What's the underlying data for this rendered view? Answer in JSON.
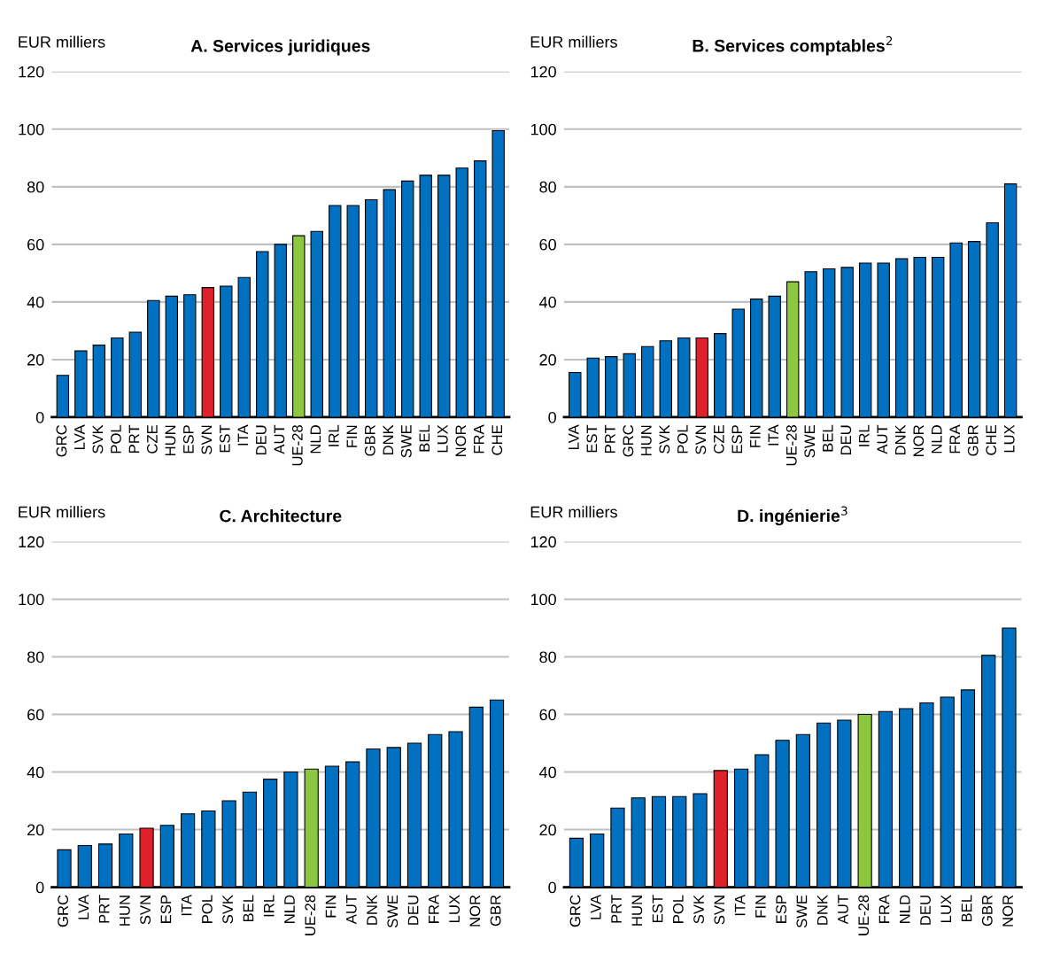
{
  "chart_data": [
    {
      "type": "bar",
      "title": "A. Services juridiques",
      "ylabel": "EUR milliers",
      "categories": [
        "GRC",
        "LVA",
        "SVK",
        "POL",
        "PRT",
        "CZE",
        "HUN",
        "ESP",
        "SVN",
        "EST",
        "ITA",
        "DEU",
        "AUT",
        "UE-28",
        "NLD",
        "IRL",
        "FIN",
        "GBR",
        "DNK",
        "SWE",
        "BEL",
        "LUX",
        "NOR",
        "FRA",
        "CHE"
      ],
      "values": [
        14.5,
        23,
        25,
        27.5,
        29.5,
        40.5,
        42,
        42.5,
        45,
        45.5,
        48.5,
        57.5,
        60,
        63,
        64.5,
        73.5,
        73.5,
        75.5,
        79,
        82,
        84,
        84,
        86.5,
        89,
        99.5
      ],
      "colors": [
        "#0070c0",
        "#0070c0",
        "#0070c0",
        "#0070c0",
        "#0070c0",
        "#0070c0",
        "#0070c0",
        "#0070c0",
        "#e0202a",
        "#0070c0",
        "#0070c0",
        "#0070c0",
        "#0070c0",
        "#8dc63f",
        "#0070c0",
        "#0070c0",
        "#0070c0",
        "#0070c0",
        "#0070c0",
        "#0070c0",
        "#0070c0",
        "#0070c0",
        "#0070c0",
        "#0070c0",
        "#0070c0"
      ],
      "ylim": [
        0,
        120
      ],
      "yticks": [
        0,
        20,
        40,
        60,
        80,
        100,
        120
      ],
      "grid": "y"
    },
    {
      "type": "bar",
      "title": "B. Services comptables$^{2}$",
      "ylabel": "EUR milliers",
      "categories": [
        "LVA",
        "EST",
        "PRT",
        "GRC",
        "HUN",
        "SVK",
        "POL",
        "SVN",
        "CZE",
        "ESP",
        "FIN",
        "ITA",
        "UE-28",
        "SWE",
        "BEL",
        "DEU",
        "IRL",
        "AUT",
        "DNK",
        "NOR",
        "NLD",
        "FRA",
        "GBR",
        "CHE",
        "LUX"
      ],
      "values": [
        15.5,
        20.5,
        21,
        22,
        24.5,
        26.5,
        27.5,
        27.5,
        29,
        37.5,
        41,
        42,
        47,
        50.5,
        51.5,
        52,
        53.5,
        53.5,
        55,
        55.5,
        55.5,
        60.5,
        61,
        67.5,
        81
      ],
      "colors": [
        "#0070c0",
        "#0070c0",
        "#0070c0",
        "#0070c0",
        "#0070c0",
        "#0070c0",
        "#0070c0",
        "#e0202a",
        "#0070c0",
        "#0070c0",
        "#0070c0",
        "#0070c0",
        "#8dc63f",
        "#0070c0",
        "#0070c0",
        "#0070c0",
        "#0070c0",
        "#0070c0",
        "#0070c0",
        "#0070c0",
        "#0070c0",
        "#0070c0",
        "#0070c0",
        "#0070c0",
        "#0070c0"
      ],
      "ylim": [
        0,
        120
      ],
      "yticks": [
        0,
        20,
        40,
        60,
        80,
        100,
        120
      ],
      "grid": "y"
    },
    {
      "type": "bar",
      "title": "C. Architecture",
      "ylabel": "EUR milliers",
      "categories": [
        "GRC",
        "LVA",
        "PRT",
        "HUN",
        "SVN",
        "ESP",
        "ITA",
        "POL",
        "SVK",
        "BEL",
        "IRL",
        "NLD",
        "UE-28",
        "FIN",
        "AUT",
        "DNK",
        "SWE",
        "DEU",
        "FRA",
        "LUX",
        "NOR",
        "GBR"
      ],
      "values": [
        13,
        14.5,
        15,
        18.5,
        20.5,
        21.5,
        25.5,
        26.5,
        30,
        33,
        37.5,
        40,
        41,
        42,
        43.5,
        48,
        48.5,
        50,
        53,
        54,
        62.5,
        65
      ],
      "colors": [
        "#0070c0",
        "#0070c0",
        "#0070c0",
        "#0070c0",
        "#e0202a",
        "#0070c0",
        "#0070c0",
        "#0070c0",
        "#0070c0",
        "#0070c0",
        "#0070c0",
        "#0070c0",
        "#8dc63f",
        "#0070c0",
        "#0070c0",
        "#0070c0",
        "#0070c0",
        "#0070c0",
        "#0070c0",
        "#0070c0",
        "#0070c0",
        "#0070c0"
      ],
      "ylim": [
        0,
        120
      ],
      "yticks": [
        0,
        20,
        40,
        60,
        80,
        100,
        120
      ],
      "grid": "y"
    },
    {
      "type": "bar",
      "title": "D. ingénierie$^{3}$",
      "ylabel": "EUR milliers",
      "categories": [
        "GRC",
        "LVA",
        "PRT",
        "HUN",
        "EST",
        "POL",
        "SVK",
        "SVN",
        "ITA",
        "FIN",
        "ESP",
        "SWE",
        "DNK",
        "AUT",
        "UE-28",
        "FRA",
        "NLD",
        "DEU",
        "LUX",
        "BEL",
        "GBR",
        "NOR"
      ],
      "values": [
        17,
        18.5,
        27.5,
        31,
        31.5,
        31.5,
        32.5,
        40.5,
        41,
        46,
        51,
        53,
        57,
        58,
        60,
        61,
        62,
        64,
        66,
        68.5,
        80.5,
        90
      ],
      "colors": [
        "#0070c0",
        "#0070c0",
        "#0070c0",
        "#0070c0",
        "#0070c0",
        "#0070c0",
        "#0070c0",
        "#e0202a",
        "#0070c0",
        "#0070c0",
        "#0070c0",
        "#0070c0",
        "#0070c0",
        "#0070c0",
        "#8dc63f",
        "#0070c0",
        "#0070c0",
        "#0070c0",
        "#0070c0",
        "#0070c0",
        "#0070c0",
        "#0070c0"
      ],
      "ylim": [
        0,
        120
      ],
      "yticks": [
        0,
        20,
        40,
        60,
        80,
        100,
        120
      ],
      "grid": "y"
    }
  ]
}
